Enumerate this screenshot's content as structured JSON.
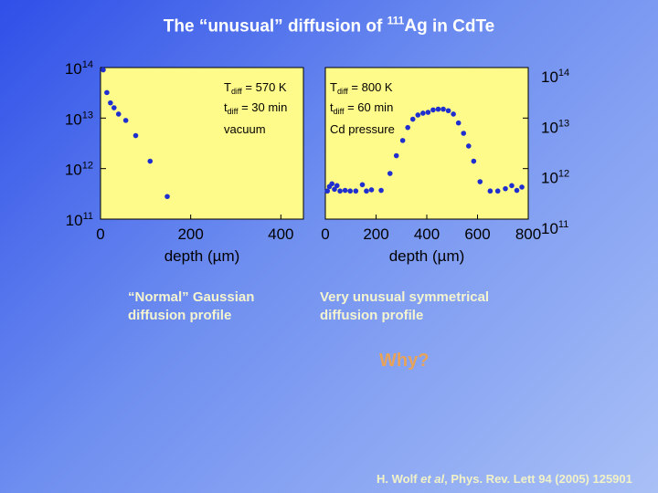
{
  "slide": {
    "title_prefix": "The “unusual” diffusion of ",
    "title_isotope_mass": "111",
    "title_element": "Ag",
    "title_suffix": " in CdTe",
    "caption_left": "“Normal” Gaussian diffusion profile",
    "caption_right": "Very unusual symmetrical diffusion profile",
    "question": "Why?",
    "citation_authors": "H. Wolf ",
    "citation_etal": "et al",
    "citation_rest": ", Phys. Rev. Lett 94 (2005) 125901"
  },
  "colors": {
    "plot_background": "#fffb8a",
    "marker": "#1f2fcf",
    "caption": "#f4f4d0",
    "question": "#e8a35a"
  },
  "chart_data": [
    {
      "type": "scatter",
      "xlabel": "depth (µm)",
      "ylabel": "",
      "xlim": [
        0,
        450
      ],
      "ylim": [
        100000000000.0,
        100000000000000.0
      ],
      "yscale": "log",
      "x_ticks": [
        "0",
        "200",
        "400"
      ],
      "y_ticks": [
        {
          "value": 100000000000000.0,
          "mantissa": "10",
          "exp": "14"
        },
        {
          "value": 10000000000000.0,
          "mantissa": "10",
          "exp": "13"
        },
        {
          "value": 1000000000000.0,
          "mantissa": "10",
          "exp": "12"
        },
        {
          "value": 100000000000.0,
          "mantissa": "10",
          "exp": "11"
        }
      ],
      "annotation": {
        "t_sym": "T",
        "t_sub": "diff",
        "t_val": " = 570 K",
        "time_sym": "t",
        "time_sub": "diff",
        "time_val": " = 30 min",
        "atmosphere": "vacuum"
      },
      "points": [
        {
          "x": 6,
          "y": 90000000000000.0
        },
        {
          "x": 14,
          "y": 32000000000000.0
        },
        {
          "x": 22,
          "y": 20000000000000.0
        },
        {
          "x": 30,
          "y": 16000000000000.0
        },
        {
          "x": 40,
          "y": 12000000000000.0
        },
        {
          "x": 56,
          "y": 9000000000000.0
        },
        {
          "x": 78,
          "y": 4500000000000.0
        },
        {
          "x": 110,
          "y": 1400000000000.0
        },
        {
          "x": 148,
          "y": 280000000000.0
        }
      ]
    },
    {
      "type": "scatter",
      "xlabel": "depth (µm)",
      "ylabel": "",
      "xlim": [
        0,
        800
      ],
      "ylim": [
        100000000000.0,
        100000000000000.0
      ],
      "yscale": "log",
      "x_ticks": [
        "0",
        "200",
        "400",
        "600",
        "800"
      ],
      "y_ticks": [
        {
          "value": 100000000000000.0,
          "mantissa": "10",
          "exp": "14"
        },
        {
          "value": 10000000000000.0,
          "mantissa": "10",
          "exp": "13"
        },
        {
          "value": 1000000000000.0,
          "mantissa": "10",
          "exp": "12"
        },
        {
          "value": 100000000000.0,
          "mantissa": "10",
          "exp": "11"
        }
      ],
      "annotation": {
        "t_sym": "T",
        "t_sub": "diff",
        "t_val": " = 800 K",
        "time_sym": "t",
        "time_sub": "diff",
        "time_val": " = 60 min",
        "atmosphere": "Cd pressure"
      },
      "points": [
        {
          "x": 8,
          "y": 360000000000.0
        },
        {
          "x": 16,
          "y": 440000000000.0
        },
        {
          "x": 26,
          "y": 500000000000.0
        },
        {
          "x": 36,
          "y": 390000000000.0
        },
        {
          "x": 46,
          "y": 460000000000.0
        },
        {
          "x": 58,
          "y": 360000000000.0
        },
        {
          "x": 78,
          "y": 370000000000.0
        },
        {
          "x": 98,
          "y": 360000000000.0
        },
        {
          "x": 120,
          "y": 360000000000.0
        },
        {
          "x": 146,
          "y": 480000000000.0
        },
        {
          "x": 162,
          "y": 360000000000.0
        },
        {
          "x": 182,
          "y": 380000000000.0
        },
        {
          "x": 220,
          "y": 370000000000.0
        },
        {
          "x": 255,
          "y": 800000000000.0
        },
        {
          "x": 280,
          "y": 1800000000000.0
        },
        {
          "x": 305,
          "y": 3600000000000.0
        },
        {
          "x": 325,
          "y": 6500000000000.0
        },
        {
          "x": 345,
          "y": 9500000000000.0
        },
        {
          "x": 365,
          "y": 11500000000000.0
        },
        {
          "x": 385,
          "y": 12500000000000.0
        },
        {
          "x": 405,
          "y": 13000000000000.0
        },
        {
          "x": 425,
          "y": 14500000000000.0
        },
        {
          "x": 445,
          "y": 15000000000000.0
        },
        {
          "x": 465,
          "y": 15000000000000.0
        },
        {
          "x": 485,
          "y": 14000000000000.0
        },
        {
          "x": 505,
          "y": 12000000000000.0
        },
        {
          "x": 525,
          "y": 8000000000000.0
        },
        {
          "x": 545,
          "y": 5000000000000.0
        },
        {
          "x": 565,
          "y": 2800000000000.0
        },
        {
          "x": 585,
          "y": 1400000000000.0
        },
        {
          "x": 610,
          "y": 550000000000.0
        },
        {
          "x": 650,
          "y": 360000000000.0
        },
        {
          "x": 680,
          "y": 360000000000.0
        },
        {
          "x": 710,
          "y": 400000000000.0
        },
        {
          "x": 735,
          "y": 460000000000.0
        },
        {
          "x": 755,
          "y": 370000000000.0
        },
        {
          "x": 775,
          "y": 430000000000.0
        }
      ]
    }
  ]
}
